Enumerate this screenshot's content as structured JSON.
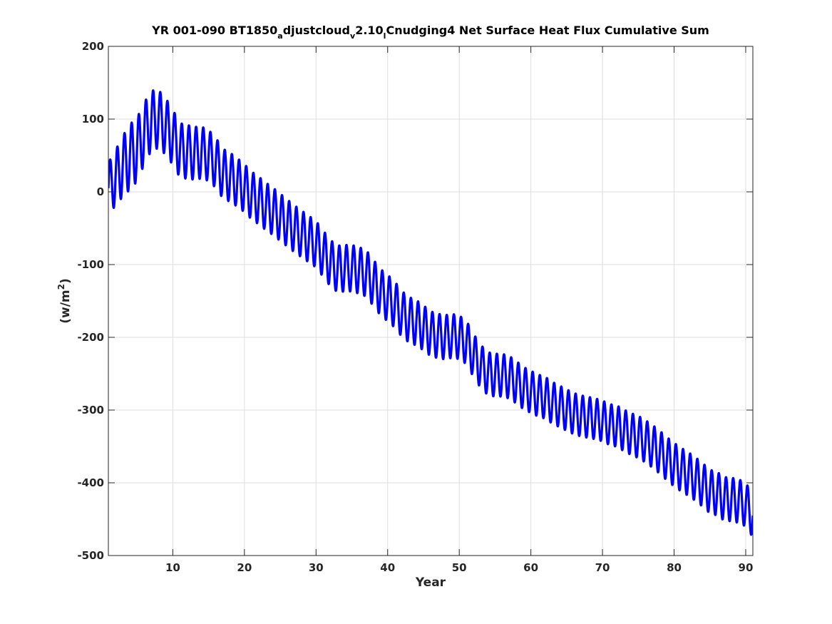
{
  "chart_data": {
    "type": "line",
    "title_parts": {
      "p1": "YR 001-090 BT1850",
      "s1": "a",
      "p2": "djustcloud",
      "s2": "v",
      "p3": "2.10",
      "s3": "l",
      "p4": "Cnudging4 Net Surface Heat Flux  Cumulative Sum"
    },
    "xlabel": "Year",
    "ylabel": {
      "base": "(w/m",
      "sup": "2",
      "end": ")"
    },
    "xlim": [
      1,
      91
    ],
    "ylim": [
      -500,
      200
    ],
    "xticks": [
      10,
      20,
      30,
      40,
      50,
      60,
      70,
      80,
      90
    ],
    "yticks": [
      -500,
      -400,
      -300,
      -200,
      -100,
      0,
      100,
      200
    ],
    "grid": true,
    "series": [
      {
        "color": "#0000ff",
        "oscillation_period_years": 1,
        "trend_years": [
          1,
          2,
          3,
          4,
          5,
          6,
          7,
          8,
          9,
          10,
          11,
          12,
          13,
          14,
          15,
          16,
          17,
          18,
          19,
          20,
          21,
          22,
          23,
          24,
          25,
          26,
          27,
          28,
          29,
          30,
          31,
          32,
          33,
          34,
          35,
          36,
          37,
          38,
          39,
          40,
          41,
          42,
          43,
          44,
          45,
          46,
          47,
          48,
          49,
          50,
          51,
          52,
          53,
          54,
          55,
          56,
          57,
          58,
          59,
          60,
          61,
          62,
          63,
          64,
          65,
          66,
          67,
          68,
          69,
          70,
          71,
          72,
          73,
          74,
          75,
          76,
          77,
          78,
          79,
          80,
          81,
          82,
          83,
          84,
          85,
          86,
          87,
          88,
          89,
          90,
          91
        ],
        "trend_values": [
          5,
          19,
          35,
          48,
          58,
          80,
          98,
          100,
          90,
          75,
          57,
          55,
          53,
          54,
          50,
          40,
          25,
          20,
          13,
          5,
          -5,
          -12,
          -20,
          -27,
          -35,
          -43,
          -51,
          -58,
          -65,
          -72,
          -85,
          -98,
          -106,
          -105,
          -105,
          -108,
          -112,
          -125,
          -138,
          -146,
          -155,
          -168,
          -176,
          -180,
          -187,
          -195,
          -198,
          -200,
          -198,
          -200,
          -207,
          -225,
          -240,
          -250,
          -252,
          -252,
          -255,
          -262,
          -270,
          -275,
          -280,
          -283,
          -290,
          -295,
          -300,
          -305,
          -308,
          -310,
          -312,
          -315,
          -320,
          -322,
          -328,
          -333,
          -337,
          -343,
          -350,
          -358,
          -367,
          -375,
          -382,
          -388,
          -395,
          -403,
          -412,
          -415,
          -422,
          -423,
          -425,
          -430,
          -445
        ],
        "amplitude_years": [
          1,
          4,
          8,
          10,
          12,
          15,
          20,
          30,
          40,
          50,
          60,
          70,
          80,
          91
        ],
        "amplitude_values": [
          35,
          45,
          40,
          38,
          37,
          35,
          33,
          32,
          32,
          30,
          29,
          28,
          30,
          30
        ]
      }
    ]
  }
}
